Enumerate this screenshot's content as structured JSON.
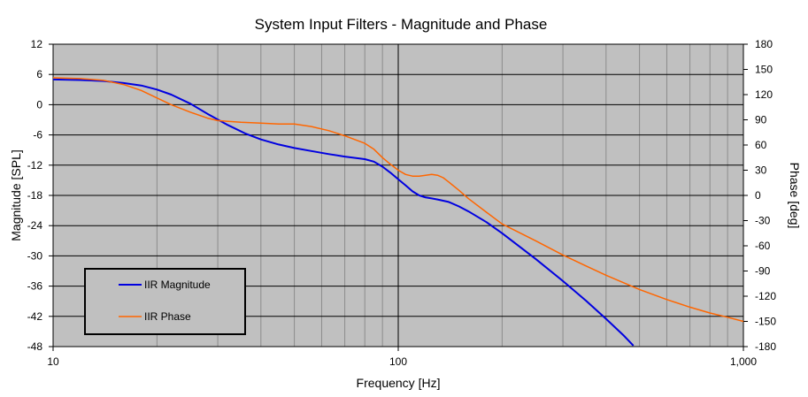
{
  "chart_data": {
    "type": "line",
    "title": "System Input Filters - Magnitude and Phase",
    "xlabel": "Frequency [Hz]",
    "ylabel_left": "Magnitude [SPL]",
    "ylabel_right": "Phase [deg]",
    "x_scale": "log",
    "xlim": [
      10,
      1000
    ],
    "x_ticks": [
      10,
      100,
      1000
    ],
    "x_tick_labels": [
      "10",
      "100",
      "1,000"
    ],
    "ylim_left": [
      -48,
      12
    ],
    "y_ticks_left": [
      -48,
      -42,
      -36,
      -30,
      -24,
      -18,
      -12,
      -6,
      0,
      6,
      12
    ],
    "ylim_right": [
      -180,
      180
    ],
    "y_ticks_right": [
      -180,
      -150,
      -120,
      -90,
      -60,
      -30,
      0,
      30,
      60,
      90,
      120,
      150,
      180
    ],
    "grid": true,
    "plot_background": "#c0c0c0",
    "legend": {
      "placement": "bottom-left"
    },
    "series": [
      {
        "name": "IIR Magnitude",
        "axis": "left",
        "color": "#0000e0",
        "x": [
          10,
          12,
          14,
          16,
          18,
          20,
          22,
          25,
          28,
          32,
          36,
          40,
          45,
          50,
          56,
          63,
          70,
          80,
          85,
          90,
          95,
          100,
          105,
          110,
          115,
          120,
          125,
          130,
          140,
          150,
          160,
          180,
          200,
          250,
          300,
          350,
          400,
          450,
          480
        ],
        "y": [
          5,
          4.9,
          4.7,
          4.3,
          3.8,
          3.0,
          2.0,
          0.2,
          -1.8,
          -4.0,
          -5.7,
          -6.9,
          -7.9,
          -8.6,
          -9.2,
          -9.8,
          -10.3,
          -10.8,
          -11.3,
          -12.3,
          -13.5,
          -14.8,
          -16.0,
          -17.2,
          -18.0,
          -18.4,
          -18.6,
          -18.8,
          -19.3,
          -20.2,
          -21.2,
          -23.3,
          -25.5,
          -30.6,
          -35.0,
          -38.9,
          -42.5,
          -45.8,
          -47.8
        ]
      },
      {
        "name": "IIR Phase",
        "axis": "right",
        "color": "#ff6600",
        "x": [
          10,
          12,
          14,
          16,
          18,
          20,
          22,
          25,
          28,
          30,
          35,
          40,
          45,
          50,
          56,
          63,
          70,
          80,
          85,
          90,
          95,
          100,
          105,
          110,
          115,
          120,
          125,
          130,
          135,
          140,
          150,
          160,
          180,
          200,
          250,
          300,
          350,
          400,
          500,
          600,
          700,
          800,
          900,
          1000
        ],
        "y": [
          140,
          139,
          137,
          132,
          125,
          116,
          108,
          99,
          92,
          89,
          87,
          86,
          85,
          85,
          82,
          77,
          71,
          62,
          55,
          45,
          37,
          30,
          25,
          23,
          23,
          24,
          25,
          24,
          21,
          16,
          6,
          -4,
          -20,
          -34,
          -54,
          -71,
          -84,
          -95,
          -112,
          -124,
          -133,
          -140,
          -145,
          -150
        ]
      }
    ]
  }
}
